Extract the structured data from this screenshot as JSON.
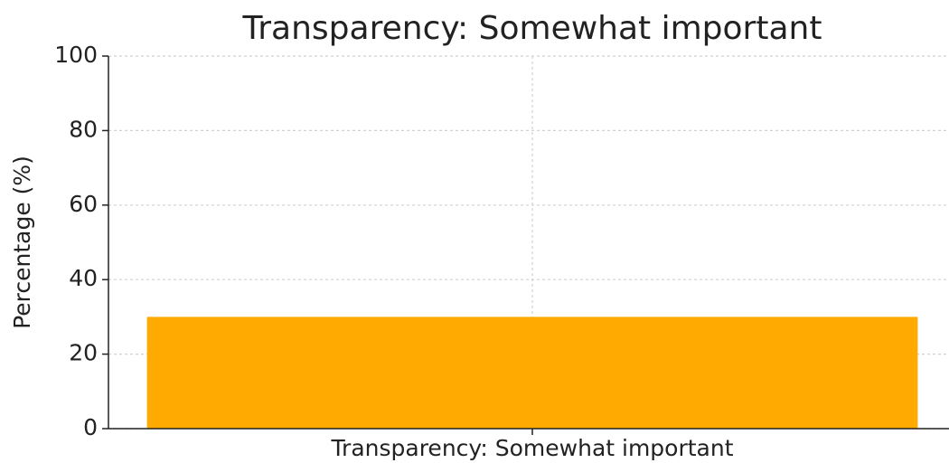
{
  "chart_data": {
    "type": "bar",
    "title": "Transparency: Somewhat important",
    "y_label": "Percentage (%)",
    "categories": [
      "Transparency: Somewhat important"
    ],
    "values": [
      30
    ],
    "color": "#ffaa00",
    "ylim": [
      0,
      100
    ],
    "yticks": [
      0,
      20,
      40,
      60,
      80,
      100
    ],
    "grid": true
  }
}
